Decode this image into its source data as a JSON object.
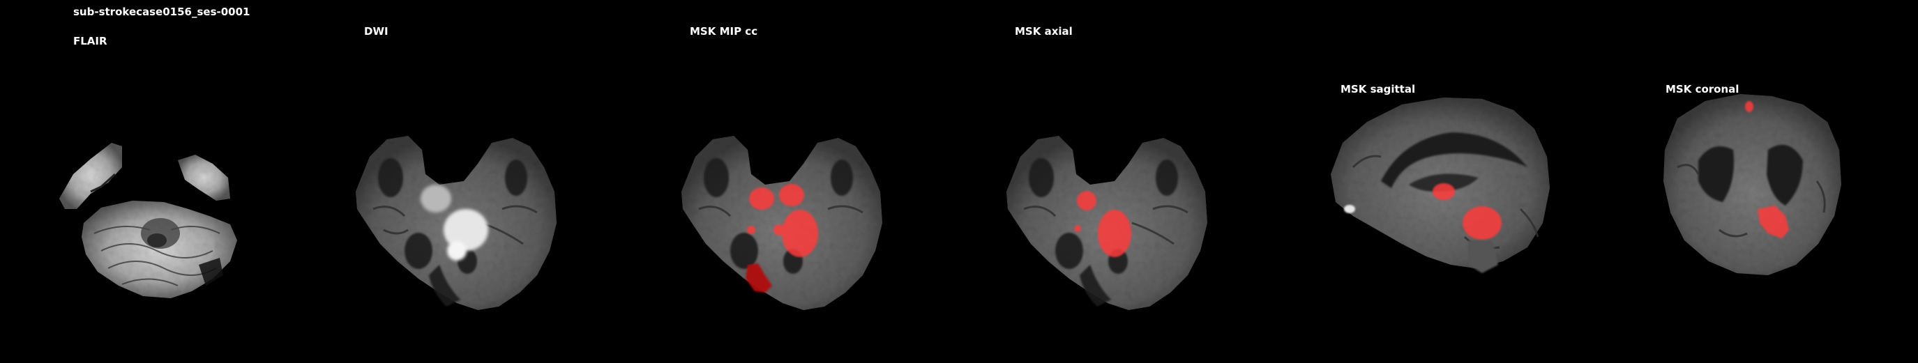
{
  "figure": {
    "title": "sub-strokecase0156_ses-0001"
  },
  "panels": [
    {
      "label": "FLAIR",
      "icon": "flair-axial-slice-image"
    },
    {
      "label": "DWI",
      "icon": "dwi-axial-slice-image"
    },
    {
      "label": "MSK MIP cc",
      "icon": "mask-mip-overlay-image"
    },
    {
      "label": "MSK axial",
      "icon": "mask-axial-overlay-image"
    },
    {
      "label": "MSK sagittal",
      "icon": "mask-sagittal-overlay-image"
    },
    {
      "label": "MSK coronal",
      "icon": "mask-coronal-overlay-image"
    }
  ],
  "colors": {
    "background": "#000000",
    "text": "#ffffff",
    "lesion_mask": "#ff3b3b",
    "lesion_mip_dark": "#b01010"
  }
}
